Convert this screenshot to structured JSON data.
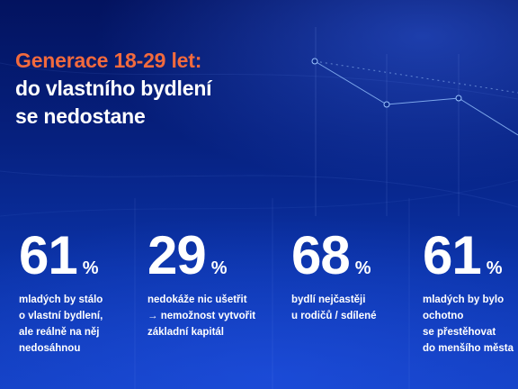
{
  "headline": {
    "line1": "Generace 18-29 let:",
    "line2": "do vlastního bydlení",
    "line3": "se nedostane"
  },
  "stats": [
    {
      "value": "61",
      "unit": "%",
      "lines": [
        "mladých by stálo",
        "o vlastní bydlení,",
        "ale reálně na něj",
        "nedosáhnou"
      ]
    },
    {
      "value": "29",
      "unit": "%",
      "lines": [
        "nedokáže nic ušetřit",
        "→ nemožnost vytvořit",
        "základní kapitál"
      ]
    },
    {
      "value": "68",
      "unit": "%",
      "lines": [
        "bydlí nejčastěji",
        "u rodičů / sdílené"
      ]
    },
    {
      "value": "61",
      "unit": "%",
      "lines": [
        "mladých by bylo",
        "ochotno",
        "se přestěhovat",
        "do menšího města"
      ]
    }
  ],
  "colors": {
    "accent": "#f26a3d",
    "text": "#ffffff",
    "background": "#0a2a93"
  }
}
